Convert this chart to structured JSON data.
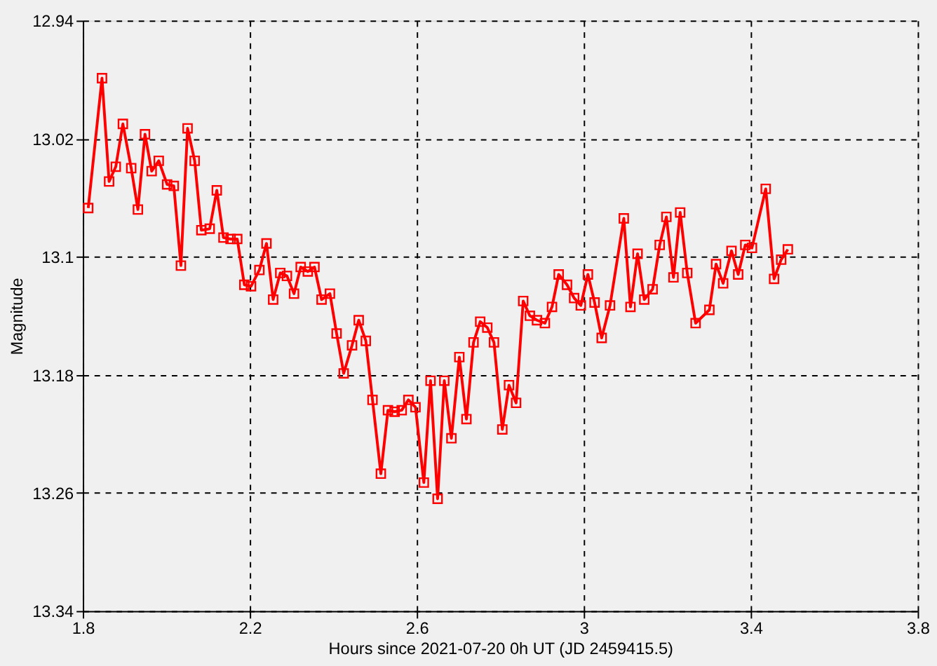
{
  "chart_data": {
    "type": "line",
    "xlabel": "Hours since 2021-07-20 0h UT (JD 2459415.5)",
    "ylabel": "Magnitude",
    "xlim": [
      1.8,
      3.8
    ],
    "xticks": [
      1.8,
      2.2,
      2.6,
      3,
      3.4,
      3.8
    ],
    "ylim": [
      13.34,
      12.94
    ],
    "yticks": [
      12.94,
      13.02,
      13.1,
      13.18,
      13.26,
      13.34
    ],
    "grid": true,
    "marker": "square",
    "line_style": "solid",
    "x": [
      1.813,
      1.846,
      1.863,
      1.879,
      1.896,
      1.916,
      1.932,
      1.949,
      1.965,
      1.982,
      2.002,
      2.018,
      2.035,
      2.051,
      2.068,
      2.084,
      2.104,
      2.121,
      2.137,
      2.154,
      2.17,
      2.187,
      2.203,
      2.223,
      2.24,
      2.256,
      2.273,
      2.289,
      2.306,
      2.322,
      2.339,
      2.355,
      2.372,
      2.392,
      2.408,
      2.425,
      2.445,
      2.461,
      2.478,
      2.494,
      2.514,
      2.531,
      2.547,
      2.564,
      2.58,
      2.597,
      2.617,
      2.633,
      2.65,
      2.666,
      2.683,
      2.702,
      2.719,
      2.736,
      2.752,
      2.769,
      2.785,
      2.805,
      2.821,
      2.838,
      2.855,
      2.871,
      2.888,
      2.907,
      2.924,
      2.94,
      2.96,
      2.977,
      2.993,
      3.01,
      3.026,
      3.043,
      3.063,
      3.096,
      3.112,
      3.129,
      3.145,
      3.165,
      3.182,
      3.198,
      3.215,
      3.231,
      3.248,
      3.268,
      3.301,
      3.317,
      3.334,
      3.354,
      3.37,
      3.387,
      3.403,
      3.436,
      3.456,
      3.473,
      3.489
    ],
    "series": [
      {
        "color": "#ff0000",
        "values": [
          13.067,
          12.979,
          13.049,
          13.039,
          13.01,
          13.04,
          13.068,
          13.017,
          13.042,
          13.035,
          13.051,
          13.052,
          13.106,
          13.013,
          13.035,
          13.082,
          13.081,
          13.055,
          13.087,
          13.088,
          13.088,
          13.119,
          13.12,
          13.109,
          13.091,
          13.129,
          13.111,
          13.113,
          13.125,
          13.107,
          13.11,
          13.107,
          13.129,
          13.125,
          13.152,
          13.179,
          13.16,
          13.143,
          13.157,
          13.197,
          13.247,
          13.204,
          13.205,
          13.204,
          13.197,
          13.202,
          13.253,
          13.184,
          13.264,
          13.184,
          13.223,
          13.168,
          13.21,
          13.158,
          13.144,
          13.148,
          13.158,
          13.217,
          13.187,
          13.199,
          13.13,
          13.14,
          13.143,
          13.145,
          13.134,
          13.112,
          13.119,
          13.128,
          13.133,
          13.112,
          13.131,
          13.155,
          13.133,
          13.074,
          13.134,
          13.098,
          13.129,
          13.122,
          13.092,
          13.073,
          13.114,
          13.07,
          13.111,
          13.145,
          13.136,
          13.105,
          13.118,
          13.096,
          13.112,
          13.092,
          13.094,
          13.054,
          13.115,
          13.102,
          13.095
        ]
      }
    ]
  }
}
